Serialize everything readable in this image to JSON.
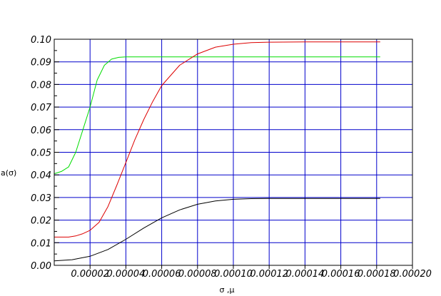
{
  "chart_data": {
    "type": "line",
    "title": "",
    "xlabel": "σ ,μ",
    "ylabel": "a(σ)",
    "xlim": [
      0.0,
      0.0002
    ],
    "ylim": [
      0.0,
      0.1
    ],
    "grid": true,
    "legend": "none",
    "x_ticks": [
      {
        "value": 2e-05,
        "label": "0.00002"
      },
      {
        "value": 4e-05,
        "label": "0.00004"
      },
      {
        "value": 6e-05,
        "label": "0.00006"
      },
      {
        "value": 8e-05,
        "label": "0.00008"
      },
      {
        "value": 0.0001,
        "label": "0.00010"
      },
      {
        "value": 0.00012,
        "label": "0.00012"
      },
      {
        "value": 0.00014,
        "label": "0.00014"
      },
      {
        "value": 0.00016,
        "label": "0.00016"
      },
      {
        "value": 0.00018,
        "label": "0.00018"
      },
      {
        "value": 0.0002,
        "label": "0.00020"
      }
    ],
    "y_ticks": [
      {
        "value": 0.0,
        "label": "0.00"
      },
      {
        "value": 0.01,
        "label": "0.01"
      },
      {
        "value": 0.02,
        "label": "0.02"
      },
      {
        "value": 0.03,
        "label": "0.03"
      },
      {
        "value": 0.04,
        "label": "0.04"
      },
      {
        "value": 0.05,
        "label": "0.05"
      },
      {
        "value": 0.06,
        "label": "0.06"
      },
      {
        "value": 0.07,
        "label": "0.07"
      },
      {
        "value": 0.08,
        "label": "0.08"
      },
      {
        "value": 0.09,
        "label": "0.09"
      },
      {
        "value": 0.1,
        "label": "0.10"
      }
    ],
    "colors": {
      "grid": "#0000cc",
      "frame": "#000000"
    },
    "series": [
      {
        "color": "#00dd00",
        "x": [
          0.0,
          4e-06,
          8e-06,
          1.2e-05,
          1.6e-05,
          2e-05,
          2.4e-05,
          2.8e-05,
          3.2e-05,
          3.6e-05,
          4e-05,
          5e-05,
          8e-05,
          0.00012,
          0.00016,
          0.000182
        ],
        "y": [
          0.0405,
          0.0415,
          0.0435,
          0.05,
          0.06,
          0.07,
          0.082,
          0.0885,
          0.0912,
          0.092,
          0.0922,
          0.0922,
          0.0922,
          0.0922,
          0.0922,
          0.0922
        ]
      },
      {
        "color": "#dd0000",
        "x": [
          0.0,
          8e-06,
          1.2e-05,
          1.6e-05,
          2e-05,
          2.5e-05,
          3e-05,
          3.5e-05,
          4e-05,
          4.5e-05,
          5e-05,
          5.5e-05,
          6e-05,
          7e-05,
          8e-05,
          9e-05,
          0.0001,
          0.00011,
          0.00012,
          0.00014,
          0.00016,
          0.000182
        ],
        "y": [
          0.0125,
          0.0125,
          0.013,
          0.014,
          0.0155,
          0.019,
          0.026,
          0.0355,
          0.0455,
          0.0555,
          0.0645,
          0.0725,
          0.0795,
          0.0885,
          0.0935,
          0.0965,
          0.0978,
          0.0985,
          0.0987,
          0.0988,
          0.0988,
          0.0988
        ]
      },
      {
        "color": "#000000",
        "x": [
          0.0,
          1e-05,
          2e-05,
          3e-05,
          4e-05,
          5e-05,
          6e-05,
          7e-05,
          8e-05,
          9e-05,
          0.0001,
          0.00011,
          0.00012,
          0.00014,
          0.00016,
          0.000182
        ],
        "y": [
          0.002,
          0.0025,
          0.004,
          0.007,
          0.0115,
          0.0165,
          0.021,
          0.0245,
          0.027,
          0.0285,
          0.0292,
          0.0295,
          0.0296,
          0.0296,
          0.0296,
          0.0296
        ]
      }
    ]
  }
}
